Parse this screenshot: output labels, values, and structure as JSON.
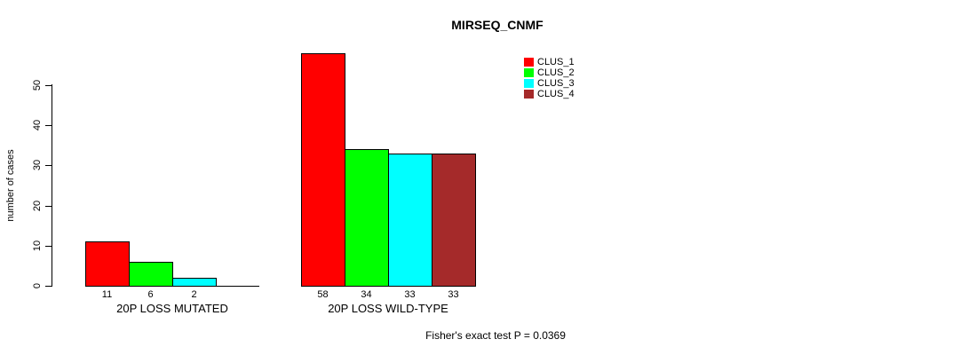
{
  "title": "MIRSEQ_CNMF",
  "footer": "Fisher's exact test P = 0.0369",
  "chart_data": {
    "type": "bar",
    "title": "MIRSEQ_CNMF",
    "xlabel": "",
    "ylabel": "number of cases",
    "ylim": [
      0,
      58
    ],
    "y_ticks": [
      0,
      10,
      20,
      30,
      40,
      50
    ],
    "grid": false,
    "legend_position": "top-right",
    "legend": [
      {
        "label": "CLUS_1",
        "color": "#FF0000"
      },
      {
        "label": "CLUS_2",
        "color": "#00FF00"
      },
      {
        "label": "CLUS_3",
        "color": "#00FFFF"
      },
      {
        "label": "CLUS_4",
        "color": "#A52A2A"
      }
    ],
    "series_colors": [
      "#FF0000",
      "#00FF00",
      "#00FFFF",
      "#A52A2A"
    ],
    "groups": [
      {
        "label": "20P LOSS MUTATED",
        "values": [
          11,
          6,
          2,
          0
        ],
        "bar_labels": [
          "11",
          "6",
          "2",
          ""
        ]
      },
      {
        "label": "20P LOSS WILD-TYPE",
        "values": [
          58,
          34,
          33,
          33
        ],
        "bar_labels": [
          "58",
          "34",
          "33",
          "33"
        ]
      }
    ],
    "annotation": "Fisher's exact test P = 0.0369"
  }
}
